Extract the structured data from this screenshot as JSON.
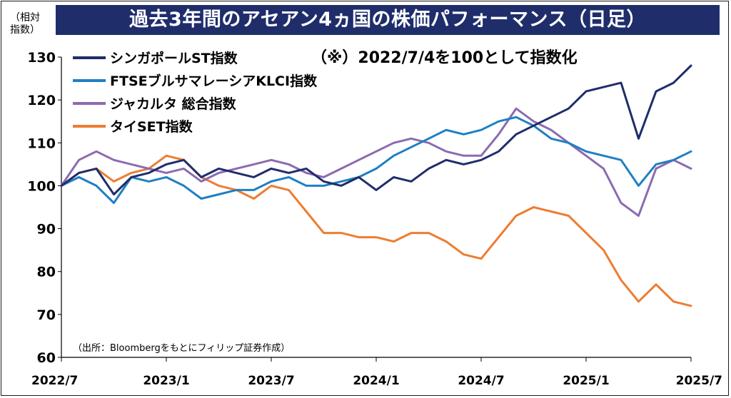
{
  "title": "過去3年間のアセアン4ヵ国の株価パフォーマンス（日足）",
  "unit_label_line1": "（相対",
  "unit_label_line2": "指数）",
  "note": "（※）2022/7/4を100として指数化",
  "source": "（出所：Bloombergをもとにフィリップ証券作成）",
  "chart_data": {
    "type": "line",
    "title": "過去3年間のアセアン4ヵ国の株価パフォーマンス（日足）",
    "xlabel": "",
    "ylabel": "（相対指数）",
    "ylim": [
      60,
      130
    ],
    "yticks": [
      60,
      70,
      80,
      90,
      100,
      110,
      120,
      130
    ],
    "x_tick_labels": [
      "2022/7",
      "2023/1",
      "2023/7",
      "2024/1",
      "2024/7",
      "2025/1",
      "2025/7"
    ],
    "x": [
      "2022/7",
      "2022/8",
      "2022/9",
      "2022/10",
      "2022/11",
      "2022/12",
      "2023/1",
      "2023/2",
      "2023/3",
      "2023/4",
      "2023/5",
      "2023/6",
      "2023/7",
      "2023/8",
      "2023/9",
      "2023/10",
      "2023/11",
      "2023/12",
      "2024/1",
      "2024/2",
      "2024/3",
      "2024/4",
      "2024/5",
      "2024/6",
      "2024/7",
      "2024/8",
      "2024/9",
      "2024/10",
      "2024/11",
      "2024/12",
      "2025/1",
      "2025/2",
      "2025/3",
      "2025/4",
      "2025/5",
      "2025/6",
      "2025/7"
    ],
    "grid": false,
    "legend_position": "top-left",
    "series": [
      {
        "name": "シンガポールST指数",
        "color": "#1f2d6b",
        "values": [
          100,
          103,
          104,
          98,
          102,
          103,
          105,
          106,
          102,
          104,
          103,
          102,
          104,
          103,
          104,
          101,
          100,
          102,
          99,
          102,
          101,
          104,
          106,
          105,
          106,
          108,
          112,
          114,
          116,
          118,
          122,
          123,
          124,
          111,
          122,
          124,
          128
        ]
      },
      {
        "name": "FTSEブルサマレーシアKLCI指数",
        "color": "#1f7fc4",
        "values": [
          100,
          102,
          100,
          96,
          102,
          101,
          102,
          100,
          97,
          98,
          99,
          99,
          101,
          102,
          100,
          100,
          101,
          102,
          104,
          107,
          109,
          111,
          113,
          112,
          113,
          115,
          116,
          114,
          111,
          110,
          108,
          107,
          106,
          100,
          105,
          106,
          108
        ]
      },
      {
        "name": "ジャカルタ 総合指数",
        "color": "#8c6ab0",
        "values": [
          100,
          106,
          108,
          106,
          105,
          104,
          103,
          104,
          101,
          103,
          104,
          105,
          106,
          105,
          103,
          102,
          104,
          106,
          108,
          110,
          111,
          110,
          108,
          107,
          107,
          112,
          118,
          115,
          113,
          110,
          107,
          104,
          96,
          93,
          104,
          106,
          104
        ]
      },
      {
        "name": "タイSET指数",
        "color": "#ed7d31",
        "values": [
          100,
          103,
          104,
          101,
          103,
          104,
          107,
          106,
          102,
          100,
          99,
          97,
          100,
          99,
          94,
          89,
          89,
          88,
          88,
          87,
          89,
          89,
          87,
          84,
          83,
          88,
          93,
          95,
          94,
          93,
          89,
          85,
          78,
          73,
          77,
          73,
          72
        ]
      }
    ]
  }
}
